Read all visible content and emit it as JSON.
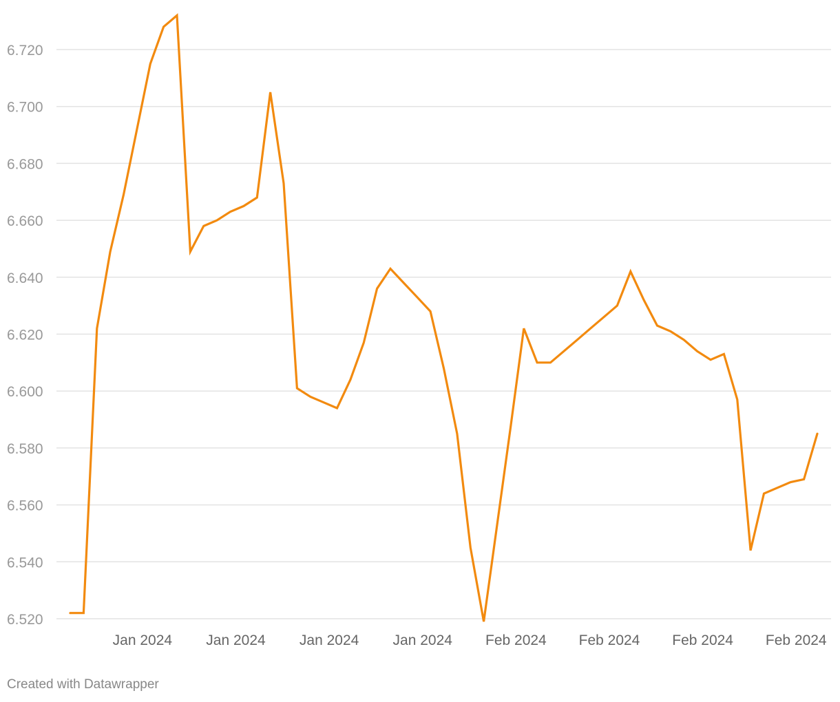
{
  "chart_data": {
    "type": "line",
    "title": "",
    "xlabel": "",
    "ylabel": "",
    "ylim": [
      6.52,
      6.732
    ],
    "grid": true,
    "legend": "none",
    "yticks": [
      6.52,
      6.54,
      6.56,
      6.58,
      6.6,
      6.62,
      6.64,
      6.66,
      6.68,
      6.7,
      6.72
    ],
    "ytick_labels": [
      "6.520",
      "6.540",
      "6.560",
      "6.580",
      "6.600",
      "6.620",
      "6.640",
      "6.660",
      "6.680",
      "6.700",
      "6.720"
    ],
    "xticks": [
      {
        "index": 5,
        "label": "Jan 2024"
      },
      {
        "index": 12,
        "label": "Jan 2024"
      },
      {
        "index": 19,
        "label": "Jan 2024"
      },
      {
        "index": 26,
        "label": "Jan 2024"
      },
      {
        "index": 33,
        "label": "Feb 2024"
      },
      {
        "index": 40,
        "label": "Feb 2024"
      },
      {
        "index": 47,
        "label": "Feb 2024"
      },
      {
        "index": 54,
        "label": "Feb 2024"
      }
    ],
    "series": [
      {
        "color": "#f28a0f",
        "values": [
          6.522,
          6.522,
          6.622,
          6.649,
          6.669,
          6.692,
          6.715,
          6.728,
          6.732,
          6.649,
          6.658,
          6.66,
          6.663,
          6.665,
          6.668,
          6.705,
          6.673,
          6.601,
          6.598,
          6.596,
          6.594,
          6.604,
          6.617,
          6.636,
          6.643,
          6.638,
          6.633,
          6.628,
          6.608,
          6.585,
          6.545,
          6.519,
          6.553,
          6.587,
          6.622,
          6.61,
          6.61,
          6.614,
          6.618,
          6.622,
          6.626,
          6.63,
          6.642,
          6.632,
          6.623,
          6.621,
          6.618,
          6.614,
          6.611,
          6.613,
          6.597,
          6.544,
          6.564,
          6.566,
          6.568,
          6.569,
          6.585
        ]
      }
    ]
  },
  "footer": {
    "credit": "Created with Datawrapper"
  }
}
